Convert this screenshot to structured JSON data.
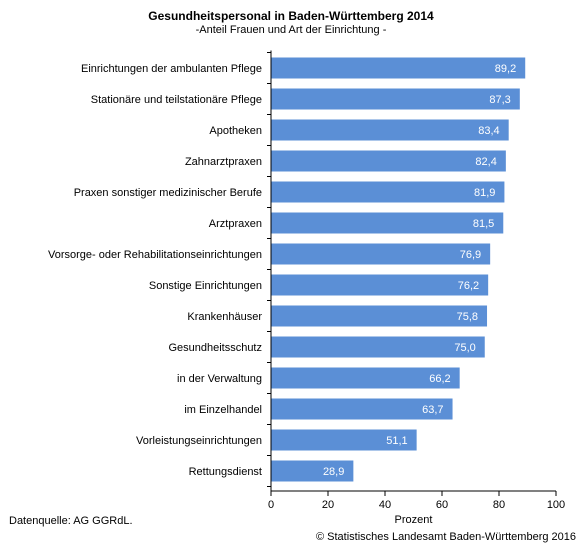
{
  "title": "Gesundheitspersonal in Baden-Württemberg 2014",
  "subtitle": "-Anteil Frauen und Art der Einrichtung -",
  "source": "Datenquelle: AG GGRdL.",
  "copyright": "© Statistisches Landesamt Baden-Württemberg 2016",
  "colors": {
    "bar": "#5b8fd6",
    "bar_label": "#ffffff",
    "axis": "#000000"
  },
  "chart_data": {
    "type": "bar",
    "orientation": "horizontal",
    "title": "Gesundheitspersonal in Baden-Württemberg 2014",
    "subtitle": "-Anteil Frauen und Art der Einrichtung -",
    "xlabel": "Prozent",
    "ylabel": "",
    "xlim": [
      0,
      100
    ],
    "xticks": [
      "0",
      "20",
      "40",
      "60",
      "80",
      "100"
    ],
    "grid": false,
    "legend": "none",
    "categories": [
      "Einrichtungen der ambulanten Pflege",
      "Stationäre und teilstationäre Pflege",
      "Apotheken",
      "Zahnarztpraxen",
      "Praxen sonstiger medizinischer Berufe",
      "Arztpraxen",
      "Vorsorge- oder Rehabilitationseinrichtungen",
      "Sonstige Einrichtungen",
      "Krankenhäuser",
      "Gesundheitsschutz",
      "in der Verwaltung",
      "im Einzelhandel",
      "Vorleistungseinrichtungen",
      "Rettungsdienst"
    ],
    "values": [
      89.2,
      87.3,
      83.4,
      82.4,
      81.9,
      81.5,
      76.9,
      76.2,
      75.8,
      75.0,
      66.2,
      63.7,
      51.1,
      28.9
    ],
    "value_labels": [
      "89,2",
      "87,3",
      "83,4",
      "82,4",
      "81,9",
      "81,5",
      "76,9",
      "76,2",
      "75,8",
      "75,0",
      "66,2",
      "63,7",
      "51,1",
      "28,9"
    ]
  }
}
